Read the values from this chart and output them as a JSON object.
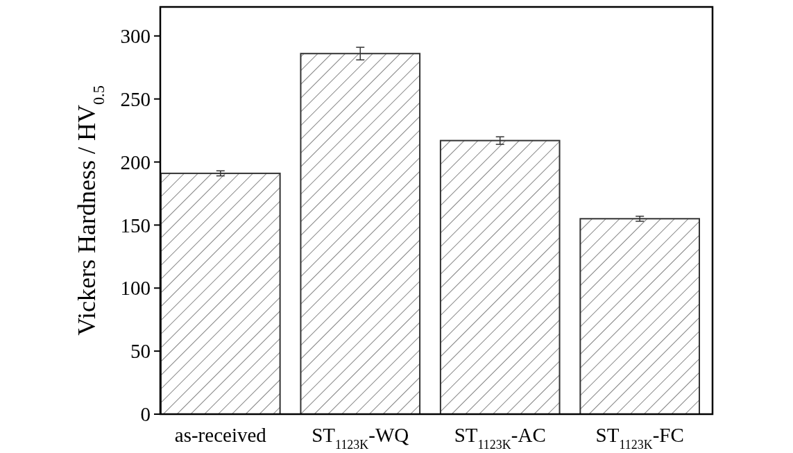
{
  "chart_data": {
    "type": "bar",
    "ylabel": "Vickers Hardness / HV$_{0.5}$",
    "categories": [
      "as-received",
      "ST$_{1123K}$-WQ",
      "ST$_{1123K}$-AC",
      "ST$_{1123K}$-FC"
    ],
    "values": [
      191,
      286,
      217,
      155
    ],
    "errors": [
      2,
      5,
      3,
      2
    ],
    "color": "#333333",
    "ylim": [
      0,
      323
    ],
    "yticks": [
      0,
      50,
      100,
      150,
      200,
      250,
      300
    ],
    "grid": false
  }
}
